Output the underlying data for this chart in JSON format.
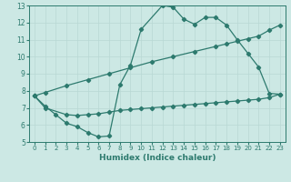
{
  "line1_x": [
    0,
    1,
    2,
    3,
    4,
    5,
    6,
    7,
    8,
    9,
    10,
    12,
    13,
    14,
    15,
    16,
    17,
    18,
    19,
    20,
    21,
    22,
    23
  ],
  "line1_y": [
    7.7,
    7.1,
    6.6,
    6.1,
    5.9,
    5.55,
    5.3,
    5.35,
    8.35,
    9.5,
    11.6,
    13.0,
    12.9,
    12.2,
    11.9,
    12.3,
    12.3,
    11.85,
    11.0,
    10.2,
    9.4,
    7.85,
    7.8
  ],
  "line2_x": [
    0,
    1,
    3,
    4,
    5,
    6,
    7,
    8,
    9,
    10,
    11,
    12,
    13,
    14,
    15,
    16,
    17,
    18,
    19,
    20,
    21,
    22,
    23
  ],
  "line2_y": [
    7.7,
    7.0,
    6.6,
    6.55,
    6.6,
    6.65,
    6.75,
    6.85,
    6.9,
    6.95,
    7.0,
    7.05,
    7.1,
    7.15,
    7.2,
    7.25,
    7.3,
    7.35,
    7.4,
    7.45,
    7.5,
    7.6,
    7.8
  ],
  "line3_x": [
    0,
    1,
    3,
    5,
    7,
    9,
    11,
    13,
    15,
    17,
    18,
    19,
    20,
    21,
    22,
    23
  ],
  "line3_y": [
    7.7,
    7.9,
    8.3,
    8.65,
    9.0,
    9.35,
    9.7,
    10.0,
    10.3,
    10.6,
    10.75,
    10.9,
    11.05,
    11.2,
    11.55,
    11.85
  ],
  "color": "#2d7a6e",
  "bg_color": "#cce8e4",
  "grid_color": "#b8d8d4",
  "xlabel": "Humidex (Indice chaleur)",
  "xlim": [
    -0.5,
    23.5
  ],
  "ylim": [
    5,
    13
  ],
  "xticks": [
    0,
    1,
    2,
    3,
    4,
    5,
    6,
    7,
    8,
    9,
    10,
    11,
    12,
    13,
    14,
    15,
    16,
    17,
    18,
    19,
    20,
    21,
    22,
    23
  ],
  "yticks": [
    5,
    6,
    7,
    8,
    9,
    10,
    11,
    12,
    13
  ],
  "marker": "D",
  "markersize": 2.2,
  "linewidth": 0.9
}
